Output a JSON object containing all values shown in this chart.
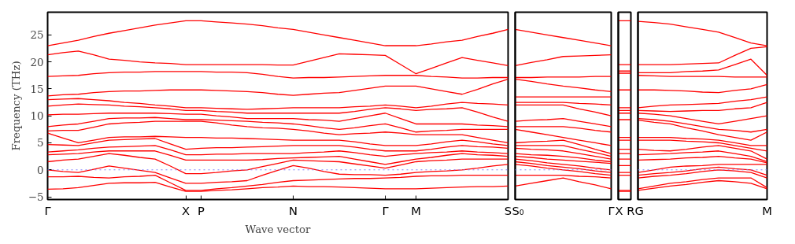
{
  "chart_data": [
    {
      "type": "line",
      "ylabel": "Frequency (THz)",
      "xlabel": "Wave vector",
      "ylim": [
        -5.5,
        29.2
      ],
      "yticks": [
        -5,
        0,
        5,
        10,
        15,
        20,
        25
      ],
      "categories": [
        "Γ",
        null,
        null,
        null,
        null,
        null,
        null,
        null,
        null,
        "X",
        "P",
        null,
        null,
        null,
        null,
        null,
        "N",
        null,
        null,
        null,
        null,
        null,
        "Γ",
        null,
        "M",
        null,
        null,
        null,
        null,
        null,
        "S"
      ],
      "ref_lines": [
        {
          "axis": "y",
          "value": 0,
          "color": "#8080ff",
          "line_style": "dotted"
        }
      ],
      "line_style": "solid",
      "series": [
        {
          "color": "#ff0000",
          "values": [
            -3.6,
            -3.5,
            -3.3,
            -2.9,
            -2.5,
            -2.4,
            -2.4,
            -2.3,
            -3.2,
            -4,
            -4,
            -3.8,
            -3.7,
            -3.5,
            -3.3,
            -3.2,
            -3,
            -3.1,
            -3.1,
            -3.2,
            -3.3,
            -3.4,
            -3.5,
            -3.5,
            -3.5,
            -3.4,
            -3.3,
            -3.2,
            -3.1,
            -3.1,
            -3
          ]
        },
        {
          "color": "#ff0000",
          "values": [
            -1.3,
            -1.3,
            -1.2,
            -1.4,
            -1.5,
            -1.3,
            -1.2,
            -1,
            -2.4,
            -3.8,
            -3.8,
            -3.5,
            -3.3,
            -3,
            -2.7,
            -2.3,
            -2,
            -1.9,
            -1.8,
            -1.7,
            -1.6,
            -1.6,
            -1.5,
            -1.4,
            -1.2,
            -1.1,
            -1.1,
            -1,
            -1,
            -1,
            -1
          ]
        },
        {
          "color": "#ff0000",
          "values": [
            0,
            -0.3,
            -0.5,
            0.1,
            0.7,
            0.3,
            -0.1,
            -0.5,
            -1.5,
            -2.5,
            -2.5,
            -2.3,
            -2.2,
            -2,
            -1,
            -0.1,
            0.8,
            0.3,
            -0.3,
            -0.8,
            -0.9,
            -0.9,
            -1,
            -0.8,
            -0.5,
            -0.3,
            -0.2,
            0,
            0.3,
            0.7,
            1
          ]
        },
        {
          "color": "#ff0000",
          "values": [
            1.5,
            1.8,
            2,
            2.5,
            3,
            2.7,
            2.3,
            2,
            0.7,
            -0.7,
            -0.7,
            -0.5,
            -0.2,
            0,
            0.6,
            1.2,
            1.8,
            1.7,
            1.6,
            1.5,
            1.1,
            0.7,
            0.3,
            0.9,
            1.5,
            1.7,
            1.8,
            2,
            2,
            2,
            2
          ]
        },
        {
          "color": "#ff0000",
          "values": [
            2.8,
            2.9,
            3,
            3.3,
            3.5,
            3.5,
            3.5,
            3.5,
            2.7,
            1.8,
            1.8,
            1.8,
            1.8,
            1.8,
            1.9,
            2.1,
            2.2,
            2.3,
            2.4,
            2.5,
            2,
            1.5,
            1,
            1.5,
            2,
            2.3,
            2.7,
            3,
            2.8,
            2.7,
            2.5
          ]
        },
        {
          "color": "#ff0000",
          "values": [
            3.3,
            3.5,
            3.7,
            4,
            4.2,
            4.3,
            4.4,
            4.5,
            3.7,
            2.8,
            2.8,
            2.9,
            2.9,
            3,
            3,
            3,
            3,
            3.2,
            3.3,
            3.5,
            3.2,
            2.8,
            2.5,
            2.8,
            3,
            3.2,
            3.3,
            3.5,
            3.3,
            3.2,
            3
          ]
        },
        {
          "color": "#ff0000",
          "values": [
            4.7,
            4.6,
            4.5,
            5,
            5.5,
            5.6,
            5.7,
            5.8,
            4.8,
            3.8,
            4,
            4.1,
            4.1,
            4.2,
            4.3,
            4.4,
            4.5,
            4.5,
            4.5,
            4.5,
            4.2,
            3.8,
            3.5,
            3.5,
            3.5,
            3.8,
            4.2,
            4.5,
            4.3,
            4.2,
            4
          ]
        },
        {
          "color": "#ff0000",
          "values": [
            6.8,
            5.9,
            5,
            5.5,
            6,
            6.1,
            6.1,
            6.2,
            6.1,
            6,
            6,
            5.9,
            5.9,
            5.8,
            5.7,
            5.6,
            5.5,
            5.5,
            5.5,
            5.5,
            5.2,
            4.8,
            4.5,
            4.5,
            4.5,
            4.8,
            5.2,
            5.5,
            5.2,
            4.8,
            4.5
          ]
        },
        {
          "color": "#ff0000",
          "values": [
            7.2,
            7.3,
            7.3,
            7.9,
            8.5,
            8.7,
            8.8,
            9,
            9,
            9,
            9,
            8.7,
            8.3,
            8,
            7.8,
            7.7,
            7.5,
            7.2,
            6.8,
            6.5,
            6.7,
            6.8,
            7,
            6.8,
            6.5,
            6.5,
            6.5,
            6.5,
            6,
            5.5,
            5
          ]
        },
        {
          "color": "#ff0000",
          "values": [
            8,
            8.3,
            8.5,
            9,
            9.5,
            9.6,
            9.6,
            9.7,
            9.5,
            9.3,
            9.3,
            9.2,
            9.1,
            9,
            8.8,
            8.7,
            8.5,
            8.2,
            7.8,
            7.5,
            7.8,
            8.2,
            8.5,
            7.8,
            7,
            7.2,
            7.3,
            7.5,
            7.5,
            7.5,
            7.5
          ]
        },
        {
          "color": "#ff0000",
          "values": [
            10.2,
            10.3,
            10.3,
            10.4,
            10.5,
            10.5,
            10.5,
            10.5,
            10.4,
            10.3,
            10.3,
            10,
            9.8,
            9.5,
            9.5,
            9.5,
            9.5,
            9.3,
            9.2,
            9,
            9.5,
            10,
            10.5,
            9.5,
            8.5,
            8.5,
            8.5,
            8.5,
            8.3,
            8.2,
            8
          ]
        },
        {
          "color": "#ff0000",
          "values": [
            11.8,
            12,
            12.2,
            12.1,
            12,
            11.8,
            11.7,
            11.5,
            11.3,
            11,
            11,
            10.8,
            10.7,
            10.5,
            10.5,
            10.5,
            10.5,
            10.5,
            10.5,
            10.5,
            10.8,
            11.2,
            11.5,
            11.3,
            11,
            11.2,
            11.3,
            11.5,
            10.7,
            9.8,
            9
          ]
        },
        {
          "color": "#ff0000",
          "values": [
            13,
            13.1,
            13.2,
            13,
            12.8,
            12.5,
            12.3,
            12,
            11.8,
            11.5,
            11.5,
            11.4,
            11.3,
            11.2,
            11.3,
            11.4,
            11.5,
            11.5,
            11.5,
            11.5,
            11.7,
            11.8,
            12,
            11.8,
            11.5,
            11.8,
            12.2,
            12.5,
            12.3,
            12.2,
            12
          ]
        },
        {
          "color": "#ff0000",
          "values": [
            13.7,
            13.9,
            14,
            14.3,
            14.5,
            14.6,
            14.6,
            14.7,
            14.8,
            14.8,
            14.8,
            14.7,
            14.6,
            14.5,
            14.3,
            14,
            13.8,
            14,
            14.2,
            14.3,
            14.7,
            15.1,
            15.5,
            15.5,
            15.5,
            15,
            14.5,
            14,
            14.9,
            15.9,
            16.8
          ]
        },
        {
          "color": "#ff0000",
          "values": [
            17.3,
            17.4,
            17.5,
            17.8,
            18,
            18.1,
            18.1,
            18.2,
            18.2,
            18.2,
            18.2,
            18.1,
            18.1,
            18,
            17.7,
            17.3,
            17,
            17.1,
            17.1,
            17.2,
            17.3,
            17.4,
            17.5,
            17.5,
            17.5,
            17.3,
            17.2,
            17,
            17,
            17.1,
            17.1
          ]
        },
        {
          "color": "#ff0000",
          "values": [
            21.3,
            21.7,
            22,
            21.3,
            20.5,
            20.3,
            20,
            19.8,
            19.7,
            19.5,
            19.5,
            19.5,
            19.5,
            19.5,
            19.5,
            19.4,
            19.4,
            20.1,
            20.8,
            21.5,
            21.4,
            21.3,
            21.2,
            19.5,
            17.8,
            18.8,
            19.8,
            20.8,
            20.3,
            19.8,
            19.3
          ]
        },
        {
          "color": "#ff0000",
          "values": [
            23,
            23.5,
            24,
            24.7,
            25.3,
            25.8,
            26.3,
            26.8,
            27.2,
            27.6,
            27.6,
            27.4,
            27.2,
            27,
            26.7,
            26.3,
            26,
            25.5,
            25,
            24.5,
            24,
            23.5,
            23,
            23,
            23,
            23.3,
            23.7,
            24,
            24.7,
            25.3,
            26
          ]
        }
      ]
    },
    {
      "type": "line",
      "ylim": [
        -5.5,
        29.2
      ],
      "tick_labels": "x",
      "categories": [
        "S₀",
        null,
        null,
        null,
        null,
        null,
        "Γ"
      ],
      "ref_lines": [
        {
          "axis": "y",
          "value": 0,
          "color": "#8080ff",
          "line_style": "dotted"
        }
      ],
      "line_style": "solid",
      "series": [
        {
          "color": "#ff0000",
          "values": [
            -3,
            -2.5,
            -2,
            -1.5,
            -2.2,
            -2.8,
            -3.5
          ]
        },
        {
          "color": "#ff0000",
          "values": [
            -1,
            -1,
            -1,
            -1,
            -1.2,
            -1.3,
            -1.5
          ]
        },
        {
          "color": "#ff0000",
          "values": [
            1,
            0.7,
            0.3,
            0,
            -0.3,
            -0.7,
            -1
          ]
        },
        {
          "color": "#ff0000",
          "values": [
            1.5,
            1.2,
            0.8,
            0.5,
            0.2,
            -0.2,
            -0.5
          ]
        },
        {
          "color": "#ff0000",
          "values": [
            2,
            1.7,
            1.3,
            1,
            0.7,
            0.3,
            0
          ]
        },
        {
          "color": "#ff0000",
          "values": [
            2.5,
            2.3,
            2,
            1.8,
            1.6,
            1.4,
            1.2
          ]
        },
        {
          "color": "#ff0000",
          "values": [
            3,
            2.8,
            2.7,
            2.5,
            2.2,
            1.8,
            1.5
          ]
        },
        {
          "color": "#ff0000",
          "values": [
            4,
            3.8,
            3.7,
            3.5,
            3,
            2.5,
            2
          ]
        },
        {
          "color": "#ff0000",
          "values": [
            4.5,
            4.5,
            4.5,
            4.5,
            3.8,
            3.2,
            2.5
          ]
        },
        {
          "color": "#ff0000",
          "values": [
            5,
            5.2,
            5.3,
            5.5,
            4.7,
            3.8,
            3
          ]
        },
        {
          "color": "#ff0000",
          "values": [
            7.5,
            7,
            6.5,
            6,
            5.5,
            5,
            4.5
          ]
        },
        {
          "color": "#ff0000",
          "values": [
            8,
            8,
            8,
            8,
            7.7,
            7.3,
            7
          ]
        },
        {
          "color": "#ff0000",
          "values": [
            9,
            9.2,
            9.3,
            9.5,
            9,
            8.5,
            8
          ]
        },
        {
          "color": "#ff0000",
          "values": [
            12,
            12,
            12,
            12,
            11.3,
            10.7,
            10
          ]
        },
        {
          "color": "#ff0000",
          "values": [
            12.5,
            12.5,
            12.5,
            12.5,
            12.3,
            12.2,
            12
          ]
        },
        {
          "color": "#ff0000",
          "values": [
            13.5,
            13.5,
            13.5,
            13.5,
            13.5,
            13.5,
            13.5
          ]
        },
        {
          "color": "#ff0000",
          "values": [
            16.8,
            16.4,
            15.9,
            15.5,
            15.2,
            14.8,
            14.5
          ]
        },
        {
          "color": "#ff0000",
          "values": [
            17.1,
            17.1,
            17.2,
            17.2,
            17.2,
            17.3,
            17.3
          ]
        },
        {
          "color": "#ff0000",
          "values": [
            19.3,
            19.9,
            20.4,
            21,
            21.1,
            21.2,
            21.3
          ]
        },
        {
          "color": "#ff0000",
          "values": [
            26,
            25.5,
            25,
            24.5,
            24,
            23.5,
            23
          ]
        }
      ]
    },
    {
      "type": "line",
      "ylim": [
        -5.5,
        29.2
      ],
      "tick_labels": "x",
      "categories": [
        "X",
        "R"
      ],
      "line_style": "solid",
      "series": [
        {
          "color": "#ff0000",
          "values": [
            -4,
            -4
          ]
        },
        {
          "color": "#ff0000",
          "values": [
            -3.8,
            -3.8
          ]
        },
        {
          "color": "#ff0000",
          "values": [
            -1,
            -1
          ]
        },
        {
          "color": "#ff0000",
          "values": [
            -0.5,
            -0.5
          ]
        },
        {
          "color": "#ff0000",
          "values": [
            0.8,
            0.8
          ]
        },
        {
          "color": "#ff0000",
          "values": [
            2,
            2
          ]
        },
        {
          "color": "#ff0000",
          "values": [
            3,
            3
          ]
        },
        {
          "color": "#ff0000",
          "values": [
            3.8,
            3.8
          ]
        },
        {
          "color": "#ff0000",
          "values": [
            5.5,
            5.5
          ]
        },
        {
          "color": "#ff0000",
          "values": [
            6,
            6
          ]
        },
        {
          "color": "#ff0000",
          "values": [
            9.3,
            9.3
          ]
        },
        {
          "color": "#ff0000",
          "values": [
            10.5,
            10.5
          ]
        },
        {
          "color": "#ff0000",
          "values": [
            11,
            11
          ]
        },
        {
          "color": "#ff0000",
          "values": [
            11.5,
            11.5
          ]
        },
        {
          "color": "#ff0000",
          "values": [
            14.8,
            14.8
          ]
        },
        {
          "color": "#ff0000",
          "values": [
            17.9,
            17.9
          ]
        },
        {
          "color": "#ff0000",
          "values": [
            18.3,
            18.3
          ]
        },
        {
          "color": "#ff0000",
          "values": [
            19.5,
            19.5
          ]
        },
        {
          "color": "#ff0000",
          "values": [
            27.6,
            27.6
          ]
        }
      ]
    },
    {
      "type": "line",
      "ylim": [
        -5.5,
        29.2
      ],
      "tick_labels": "x",
      "categories": [
        "G",
        null,
        null,
        null,
        null,
        null,
        null,
        null,
        "M"
      ],
      "ref_lines": [
        {
          "axis": "y",
          "value": 0,
          "color": "#8080ff",
          "line_style": "dotted"
        }
      ],
      "line_style": "solid",
      "series": [
        {
          "color": "#ff0000",
          "values": [
            -3.8,
            -3.4,
            -3,
            -2.7,
            -2.3,
            -2,
            -2.2,
            -2.5,
            -3.5
          ]
        },
        {
          "color": "#ff0000",
          "values": [
            -3.5,
            -3,
            -2.5,
            -2.2,
            -1.8,
            -1.5,
            -1.5,
            -1.5,
            -3.3
          ]
        },
        {
          "color": "#ff0000",
          "values": [
            -1.5,
            -1.2,
            -1,
            -0.7,
            -0.3,
            0,
            -0.2,
            -0.5,
            -1.5
          ]
        },
        {
          "color": "#ff0000",
          "values": [
            -1,
            -0.7,
            -0.5,
            -0.2,
            0.2,
            0.5,
            0.2,
            0,
            -1
          ]
        },
        {
          "color": "#ff0000",
          "values": [
            -0.5,
            0,
            0.5,
            0.7,
            0.8,
            1,
            1,
            1,
            1
          ]
        },
        {
          "color": "#ff0000",
          "values": [
            1.8,
            1.9,
            2,
            2.2,
            2.3,
            2.5,
            2.2,
            2,
            1.3
          ]
        },
        {
          "color": "#ff0000",
          "values": [
            2.8,
            2.9,
            3,
            3.2,
            3.3,
            3.5,
            3,
            2.5,
            1.5
          ]
        },
        {
          "color": "#ff0000",
          "values": [
            3.8,
            3.6,
            3.5,
            3.8,
            4.2,
            4.5,
            4,
            3.5,
            2
          ]
        },
        {
          "color": "#ff0000",
          "values": [
            5.5,
            5.5,
            5.5,
            5.3,
            5.2,
            5,
            4.5,
            4,
            3.5
          ]
        },
        {
          "color": "#ff0000",
          "values": [
            6,
            6,
            6,
            5.8,
            5.7,
            5.5,
            5,
            4.5,
            4.5
          ]
        },
        {
          "color": "#ff0000",
          "values": [
            9.2,
            8.8,
            8.5,
            7.8,
            7.2,
            6.5,
            6,
            5.5,
            7
          ]
        },
        {
          "color": "#ff0000",
          "values": [
            9.5,
            9.3,
            9,
            8.5,
            8,
            7.5,
            7.3,
            7,
            7.5
          ]
        },
        {
          "color": "#ff0000",
          "values": [
            10.5,
            10.3,
            10,
            9.5,
            9,
            8.5,
            9,
            9.5,
            10
          ]
        },
        {
          "color": "#ff0000",
          "values": [
            11,
            10.9,
            10.8,
            10.9,
            11,
            11,
            11.3,
            11.5,
            12.5
          ]
        },
        {
          "color": "#ff0000",
          "values": [
            11.5,
            11.8,
            12,
            12.1,
            12.2,
            12.3,
            12.7,
            13,
            13.5
          ]
        },
        {
          "color": "#ff0000",
          "values": [
            14.8,
            14.8,
            14.7,
            14.6,
            14.4,
            14.3,
            14.7,
            15,
            15.8
          ]
        },
        {
          "color": "#ff0000",
          "values": [
            17.5,
            17.4,
            17.3,
            17.3,
            17.3,
            17.3,
            17.2,
            17.2,
            17.2
          ]
        },
        {
          "color": "#ff0000",
          "values": [
            18,
            18,
            18,
            18.2,
            18.3,
            18.5,
            19.5,
            20.5,
            17.5
          ]
        },
        {
          "color": "#ff0000",
          "values": [
            19.5,
            19.5,
            19.5,
            19.6,
            19.7,
            19.8,
            21.2,
            22.5,
            22.8
          ]
        },
        {
          "color": "#ff0000",
          "values": [
            27.5,
            27.3,
            27,
            26.5,
            26,
            25.5,
            24.5,
            23.5,
            23
          ]
        }
      ]
    }
  ]
}
